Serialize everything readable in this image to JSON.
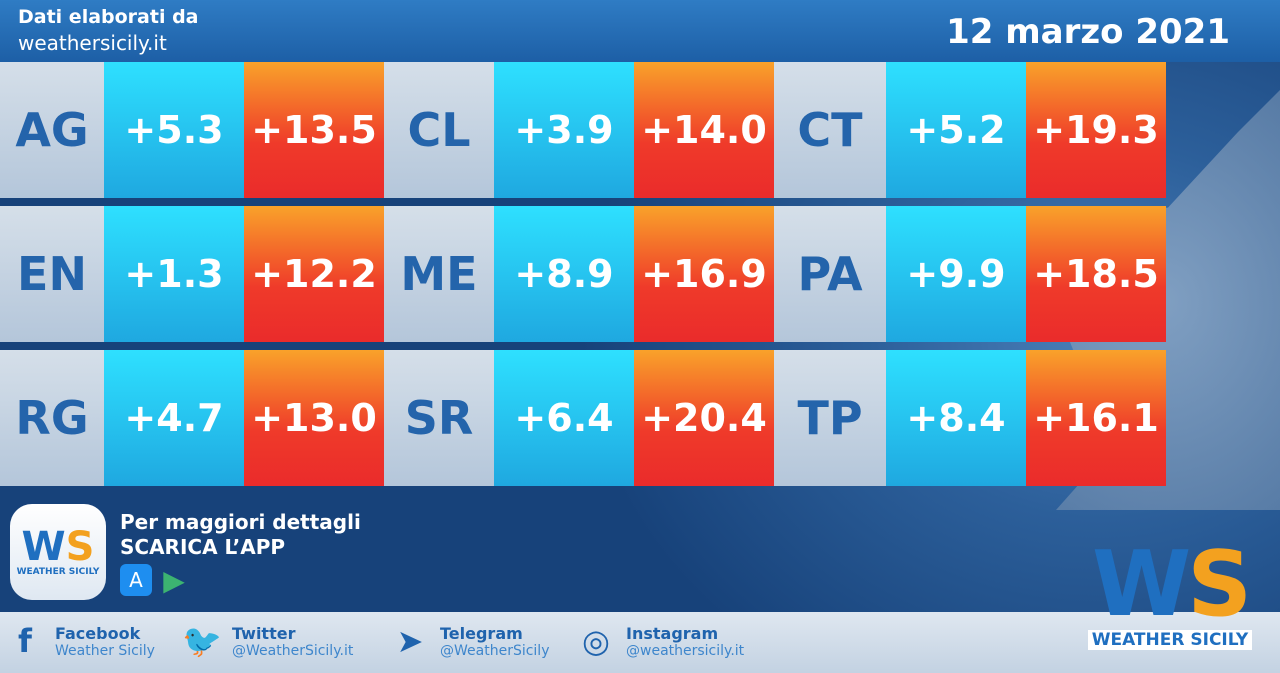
{
  "header": {
    "line1": "Dati elaborati da",
    "line2": "weathersicily.it",
    "date": "12 marzo 2021"
  },
  "rows": [
    [
      {
        "prov": "AG",
        "min": "+5.3",
        "max": "+13.5"
      },
      {
        "prov": "CL",
        "min": "+3.9",
        "max": "+14.0"
      },
      {
        "prov": "CT",
        "min": "+5.2",
        "max": "+19.3"
      }
    ],
    [
      {
        "prov": "EN",
        "min": "+1.3",
        "max": "+12.2"
      },
      {
        "prov": "ME",
        "min": "+8.9",
        "max": "+16.9"
      },
      {
        "prov": "PA",
        "min": "+9.9",
        "max": "+18.5"
      }
    ],
    [
      {
        "prov": "RG",
        "min": "+4.7",
        "max": "+13.0"
      },
      {
        "prov": "SR",
        "min": "+6.4",
        "max": "+20.4"
      },
      {
        "prov": "TP",
        "min": "+8.4",
        "max": "+16.1"
      }
    ]
  ],
  "promo": {
    "line1": "Per maggiori dettagli",
    "line2": "SCARICA L’APP",
    "logo_text": "WEATHER SICILY"
  },
  "social": [
    {
      "icon": "facebook-icon",
      "name": "Facebook",
      "handle": "Weather Sicily"
    },
    {
      "icon": "twitter-icon",
      "name": "Twitter",
      "handle": "@WeatherSicily.it"
    },
    {
      "icon": "telegram-icon",
      "name": "Telegram",
      "handle": "@WeatherSicily"
    },
    {
      "icon": "instagram-icon",
      "name": "Instagram",
      "handle": "@weathersicily.it"
    }
  ],
  "brand": {
    "name": "WEATHER SICILY"
  }
}
